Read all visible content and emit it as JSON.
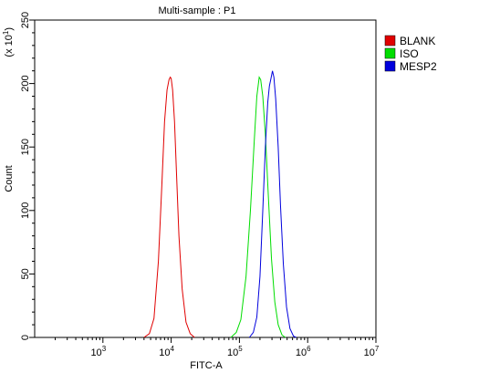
{
  "chart_data": {
    "type": "line",
    "title": "Multi-sample : P1",
    "xlabel": "FITC-A",
    "ylabel": "Count",
    "y_multiplier_label": "(x 10",
    "y_multiplier_exp": "1",
    "y_multiplier_close": ")",
    "x_scale": "log",
    "xlim": [
      100,
      10000000
    ],
    "ylim": [
      0,
      250
    ],
    "x_ticks": [
      {
        "value": 1000,
        "base": "10",
        "exp": "3"
      },
      {
        "value": 10000,
        "base": "10",
        "exp": "4"
      },
      {
        "value": 100000,
        "base": "10",
        "exp": "5"
      },
      {
        "value": 1000000,
        "base": "10",
        "exp": "6"
      },
      {
        "value": 10000000,
        "base": "10",
        "exp": "7"
      }
    ],
    "y_ticks": [
      0,
      50,
      100,
      150,
      200,
      250
    ],
    "grid": false,
    "legend_position": "top-right",
    "series": [
      {
        "name": "BLANK",
        "color": "#e00000",
        "points": [
          [
            4000,
            0
          ],
          [
            4800,
            3
          ],
          [
            5600,
            15
          ],
          [
            6500,
            60
          ],
          [
            7300,
            120
          ],
          [
            8000,
            170
          ],
          [
            8700,
            195
          ],
          [
            9300,
            203
          ],
          [
            9700,
            205
          ],
          [
            10000,
            204
          ],
          [
            10500,
            195
          ],
          [
            11200,
            170
          ],
          [
            12000,
            128
          ],
          [
            13000,
            80
          ],
          [
            14500,
            38
          ],
          [
            16500,
            12
          ],
          [
            19000,
            3
          ],
          [
            22000,
            0
          ]
        ]
      },
      {
        "name": "ISO",
        "color": "#00dd00",
        "points": [
          [
            75000,
            0
          ],
          [
            90000,
            4
          ],
          [
            105000,
            14
          ],
          [
            125000,
            48
          ],
          [
            145000,
            100
          ],
          [
            165000,
            155
          ],
          [
            180000,
            190
          ],
          [
            195000,
            205
          ],
          [
            205000,
            203
          ],
          [
            220000,
            190
          ],
          [
            240000,
            160
          ],
          [
            265000,
            112
          ],
          [
            295000,
            62
          ],
          [
            330000,
            28
          ],
          [
            370000,
            10
          ],
          [
            420000,
            2
          ],
          [
            470000,
            0
          ]
        ]
      },
      {
        "name": "MESP2",
        "color": "#0000dd",
        "points": [
          [
            140000,
            0
          ],
          [
            160000,
            4
          ],
          [
            180000,
            16
          ],
          [
            200000,
            48
          ],
          [
            220000,
            100
          ],
          [
            240000,
            150
          ],
          [
            260000,
            185
          ],
          [
            275000,
            198
          ],
          [
            290000,
            204
          ],
          [
            305000,
            210
          ],
          [
            320000,
            205
          ],
          [
            340000,
            188
          ],
          [
            370000,
            150
          ],
          [
            400000,
            104
          ],
          [
            440000,
            58
          ],
          [
            490000,
            24
          ],
          [
            550000,
            7
          ],
          [
            620000,
            1
          ],
          [
            680000,
            0
          ]
        ]
      }
    ]
  }
}
